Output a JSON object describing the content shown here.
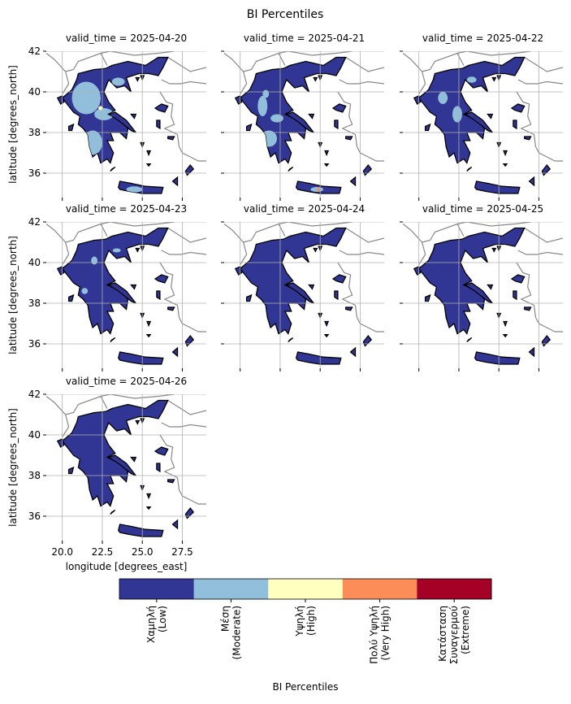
{
  "chart_data": {
    "type": "map",
    "title": "BI Percentiles",
    "panels": [
      {
        "title": "valid_time = 2025-04-20"
      },
      {
        "title": "valid_time = 2025-04-21"
      },
      {
        "title": "valid_time = 2025-04-22"
      },
      {
        "title": "valid_time = 2025-04-23"
      },
      {
        "title": "valid_time = 2025-04-24"
      },
      {
        "title": "valid_time = 2025-04-25"
      },
      {
        "title": "valid_time = 2025-04-26"
      }
    ],
    "xlabel": "longitude [degrees_east]",
    "ylabel": "latitude [degrees_north]",
    "xlim": [
      19.0,
      29.0
    ],
    "ylim": [
      34.8,
      42
    ],
    "xticks": [
      {
        "value": 20,
        "label": "20.0"
      },
      22.5,
      {
        "value": 25,
        "label": "25.0"
      },
      27.5
    ],
    "yticks": [
      36,
      38,
      40,
      42
    ],
    "grid": true,
    "colorbar": {
      "label": "BI Percentiles",
      "categories": [
        {
          "label": [
            "Χαμηλή",
            "(Low)"
          ],
          "color": "#313695"
        },
        {
          "label": [
            "Μέση",
            "(Moderate)"
          ],
          "color": "#91bfdb"
        },
        {
          "label": [
            "Υψηλή",
            "(High)"
          ],
          "color": "#ffffbf"
        },
        {
          "label": [
            "Πολύ Υψηλή",
            "(Very High)"
          ],
          "color": "#fc8d59"
        },
        {
          "label": [
            "Κατάσταση",
            "Συναγερμού",
            "(Extreme)"
          ],
          "color": "#a50026"
        }
      ]
    }
  }
}
